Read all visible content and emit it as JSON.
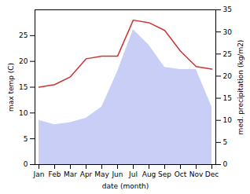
{
  "chart_data": {
    "type": "line",
    "categories": [
      "Jan",
      "Feb",
      "Mar",
      "Apr",
      "May",
      "Jun",
      "Jul",
      "Aug",
      "Sep",
      "Oct",
      "Nov",
      "Dec"
    ],
    "series": [
      {
        "type": "area",
        "axis": "y2",
        "color": "#c8cef5",
        "values": [
          10,
          9,
          9.5,
          10.5,
          13,
          21,
          30.5,
          27,
          22,
          21.5,
          21.5,
          13
        ]
      },
      {
        "type": "line",
        "axis": "y",
        "color": "#cc3333",
        "values": [
          15,
          15.5,
          17,
          20.5,
          21,
          21,
          28,
          27.5,
          26,
          22,
          19,
          18.5
        ]
      }
    ],
    "xlabel": "date (month)",
    "ylabel": "max temp (C)",
    "y2label": "med. precipitation (kg/m2)",
    "ylim": [
      0,
      30
    ],
    "yticks": [
      0,
      5,
      10,
      15,
      20,
      25
    ],
    "y2lim": [
      0,
      35
    ],
    "y2ticks": [
      0,
      5,
      10,
      15,
      20,
      25,
      30,
      35
    ],
    "grid": false
  }
}
